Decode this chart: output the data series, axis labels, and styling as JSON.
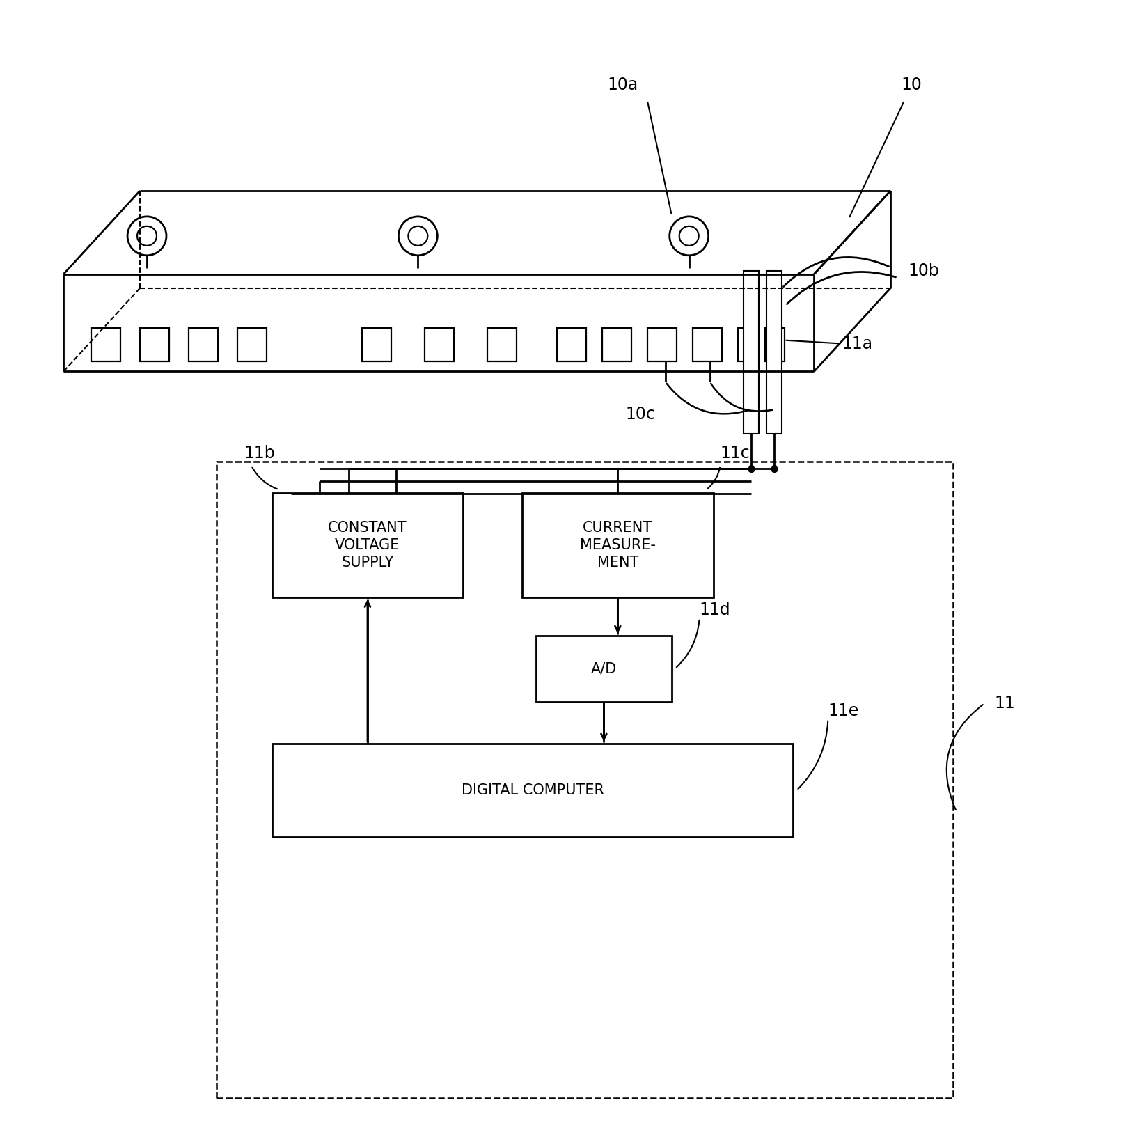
{
  "bg_color": "#ffffff",
  "line_color": "#000000",
  "labels": {
    "10": "10",
    "10a": "10a",
    "10b": "10b",
    "10c": "10c",
    "11": "11",
    "11a": "11a",
    "11b": "11b",
    "11c": "11c",
    "11d": "11d",
    "11e": "11e",
    "constant_voltage": "CONSTANT\nVOLTAGE\nSUPPLY",
    "current_measurement": "CURRENT\nMEASURE-\nMENT",
    "ad": "A/D",
    "digital_computer": "DIGITAL COMPUTER"
  },
  "figsize": [
    16.16,
    16.43
  ],
  "dpi": 100
}
